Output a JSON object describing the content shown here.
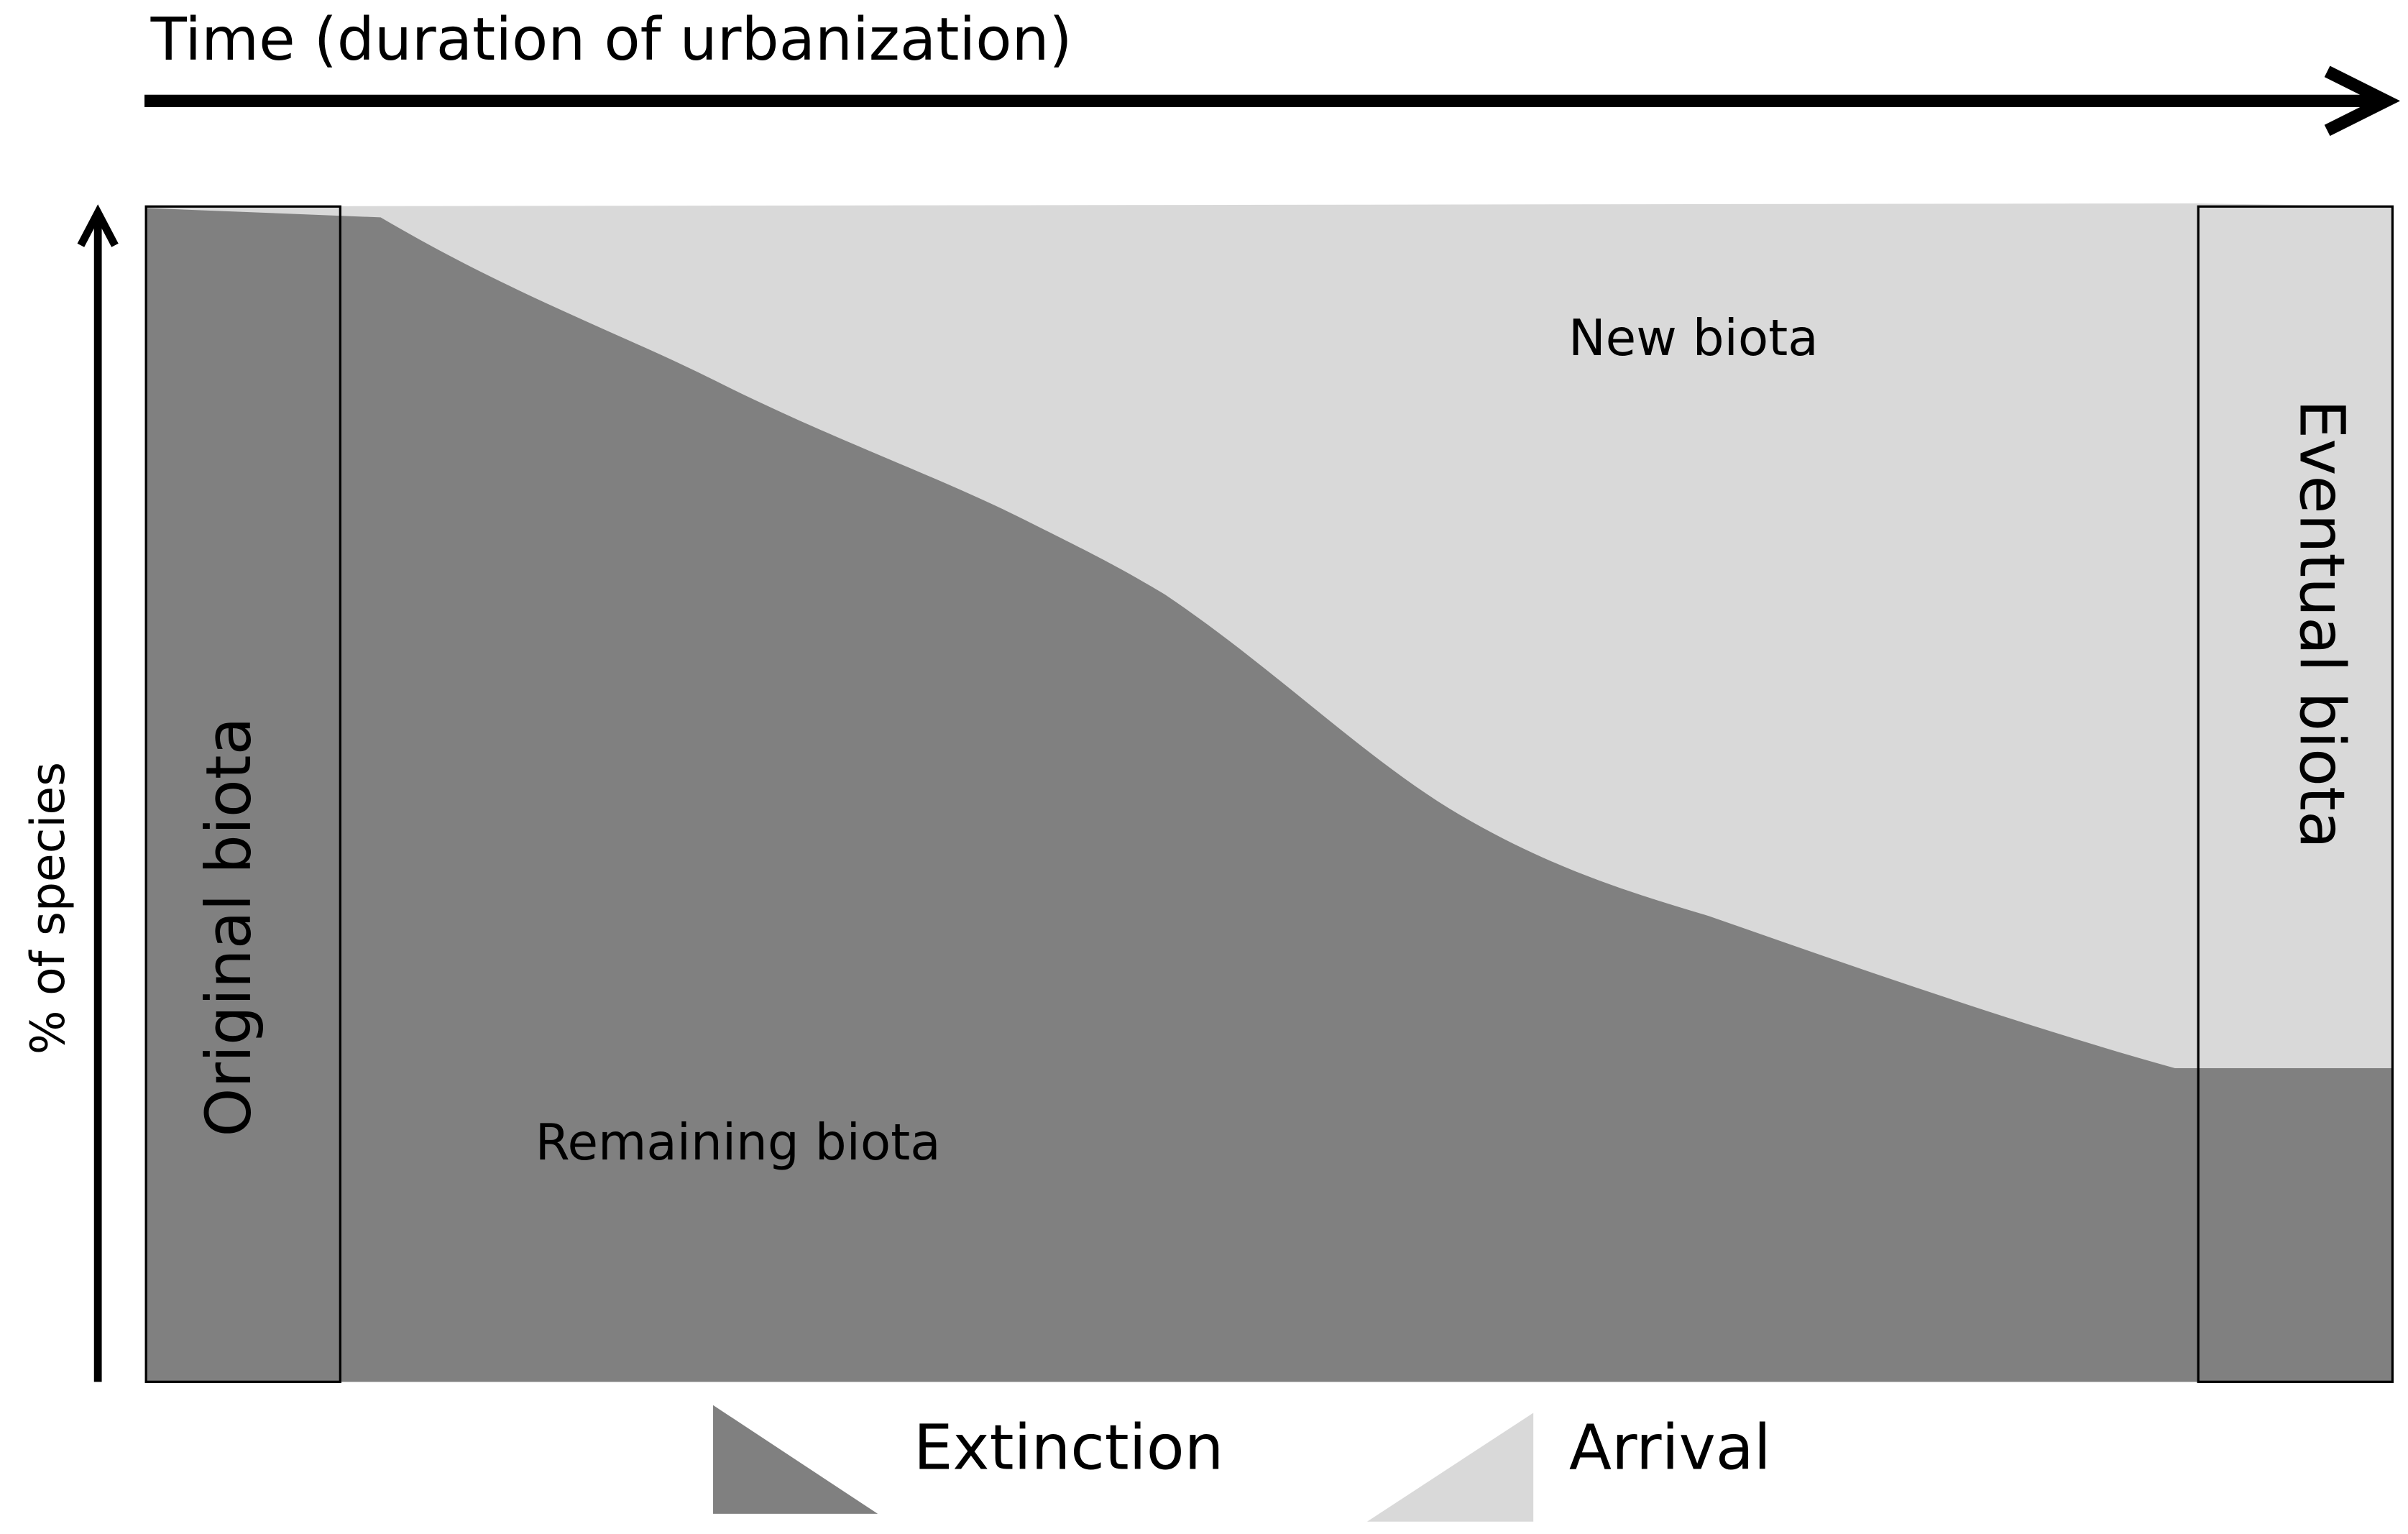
{
  "header": {
    "time_axis_label": "Time (duration of urbanization)",
    "species_axis_label": "% of species"
  },
  "panels": {
    "original": "Original biota",
    "eventual": "Eventual biota"
  },
  "regions": {
    "new": "New biota",
    "remaining": "Remaining biota"
  },
  "legend": {
    "extinction": "Extinction",
    "arrival": "Arrival"
  }
}
